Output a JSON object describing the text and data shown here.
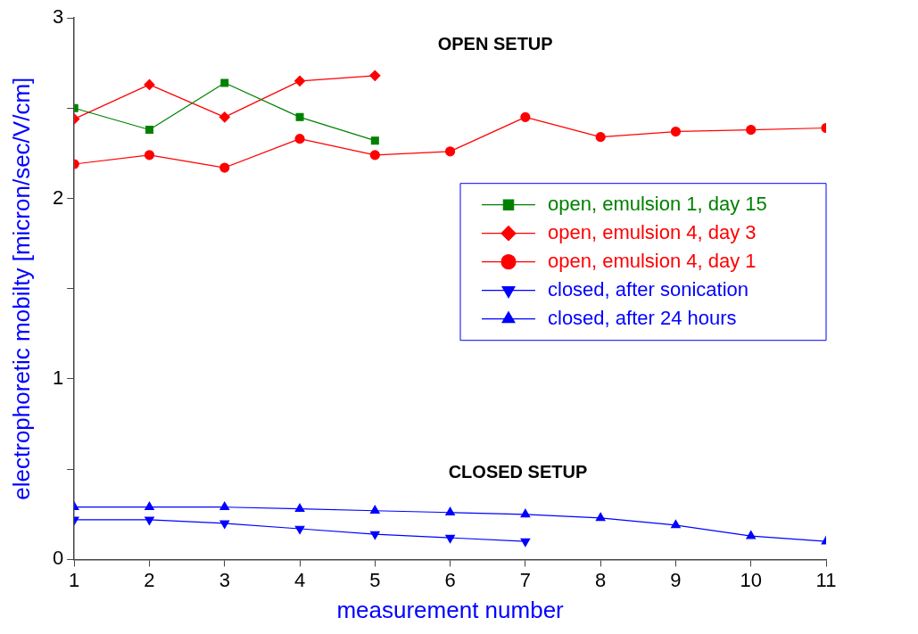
{
  "chart_data": {
    "type": "line",
    "xlabel": "measurement number",
    "ylabel": "electrophoretic mobilty [micron/sec/V/cm]",
    "xlim": [
      1,
      11
    ],
    "xticks": [
      1,
      2,
      3,
      4,
      5,
      6,
      7,
      8,
      9,
      10,
      11
    ],
    "ylim": [
      0,
      3
    ],
    "yticks": [
      0,
      {
        "value": 0.5,
        "label": null
      },
      1,
      {
        "value": 1.5,
        "label": null
      },
      2,
      {
        "value": 2.5,
        "label": null
      },
      3
    ],
    "grid": false,
    "legend": "right",
    "x": [
      1,
      2,
      3,
      4,
      5,
      6,
      7,
      8,
      9,
      10,
      11
    ],
    "series": [
      {
        "name": "open, emulsion 1, day 15",
        "color": "#008000",
        "marker": "square",
        "x": [
          1,
          2,
          3,
          4,
          5
        ],
        "values": [
          2.5,
          2.38,
          2.64,
          2.45,
          2.32
        ]
      },
      {
        "name": "open, emulsion 4, day 3",
        "color": "#ff0000",
        "marker": "diamond",
        "x": [
          1,
          2,
          3,
          4,
          5
        ],
        "values": [
          2.44,
          2.63,
          2.45,
          2.65,
          2.68
        ]
      },
      {
        "name": "open, emulsion 4, day 1",
        "color": "#ff0000",
        "marker": "circle",
        "values": [
          2.19,
          2.24,
          2.17,
          2.33,
          2.24,
          2.26,
          2.45,
          2.34,
          2.37,
          2.38,
          2.39
        ]
      },
      {
        "name": "closed, after sonication",
        "color": "#0000ff",
        "marker": "triangle-down",
        "x": [
          1,
          2,
          3,
          4,
          5,
          6,
          7
        ],
        "values": [
          0.22,
          0.22,
          0.2,
          0.17,
          0.14,
          0.12,
          0.1
        ]
      },
      {
        "name": "closed, after 24 hours",
        "color": "#0000ff",
        "marker": "triangle",
        "values": [
          0.29,
          0.29,
          0.29,
          0.28,
          0.27,
          0.26,
          0.25,
          0.23,
          0.19,
          0.13,
          0.1
        ]
      }
    ],
    "annotations": [
      "OPEN SETUP",
      "CLOSED SETUP"
    ]
  }
}
